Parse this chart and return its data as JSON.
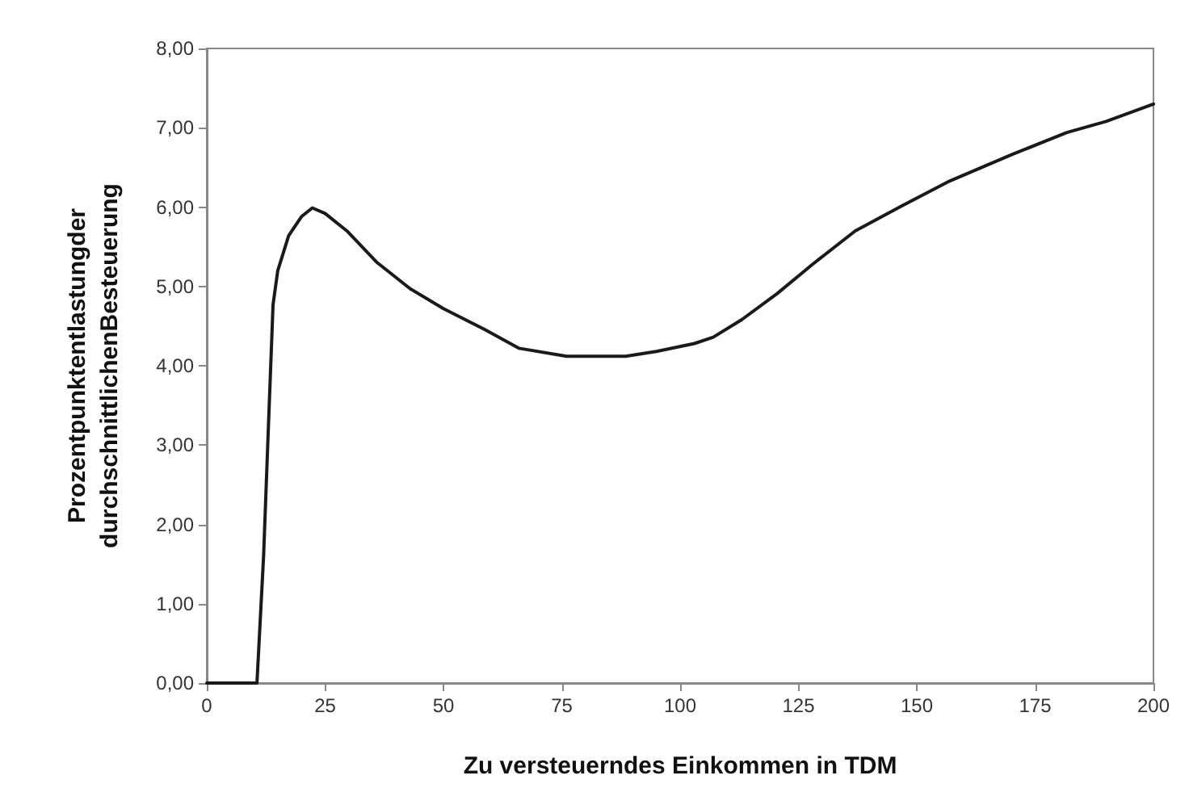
{
  "chart_data": {
    "type": "line",
    "xlabel": "Zu versteuerndes Einkommen in TDM",
    "ylabel": "Prozentpunktentlastungder\ndurchschnittlichenBesteuerung",
    "x": [
      0,
      5,
      10.6,
      12,
      13,
      14,
      15,
      17.3,
      20,
      22.3,
      25,
      29.6,
      36,
      43,
      50,
      58.6,
      66,
      76,
      88.5,
      95,
      103,
      107,
      113,
      120.5,
      128,
      137,
      147,
      157,
      170,
      181.7,
      190,
      200
    ],
    "series": [
      {
        "color": "#1a1a1a",
        "values": [
          0,
          0,
          0,
          1.6,
          3.2,
          4.77,
          5.2,
          5.64,
          5.88,
          5.99,
          5.92,
          5.7,
          5.3,
          4.97,
          4.72,
          4.46,
          4.22,
          4.12,
          4.12,
          4.18,
          4.28,
          4.36,
          4.58,
          4.91,
          5.28,
          5.7,
          6.02,
          6.33,
          6.66,
          6.94,
          7.08,
          7.3
        ]
      }
    ],
    "xlim": [
      0,
      200
    ],
    "xticks": [
      0,
      25,
      50,
      75,
      100,
      125,
      150,
      175,
      200
    ],
    "ylim": [
      0,
      8
    ],
    "yticks": [
      {
        "value": 0,
        "label": "0,00"
      },
      {
        "value": 1,
        "label": "1,00"
      },
      {
        "value": 2,
        "label": "2,00"
      },
      {
        "value": 3,
        "label": "3,00"
      },
      {
        "value": 4,
        "label": "4,00"
      },
      {
        "value": 5,
        "label": "5,00"
      },
      {
        "value": 6,
        "label": "6,00"
      },
      {
        "value": 7,
        "label": "7,00"
      },
      {
        "value": 8,
        "label": "8,00"
      }
    ],
    "grid": false,
    "marker": "none",
    "line_style": "solid"
  }
}
